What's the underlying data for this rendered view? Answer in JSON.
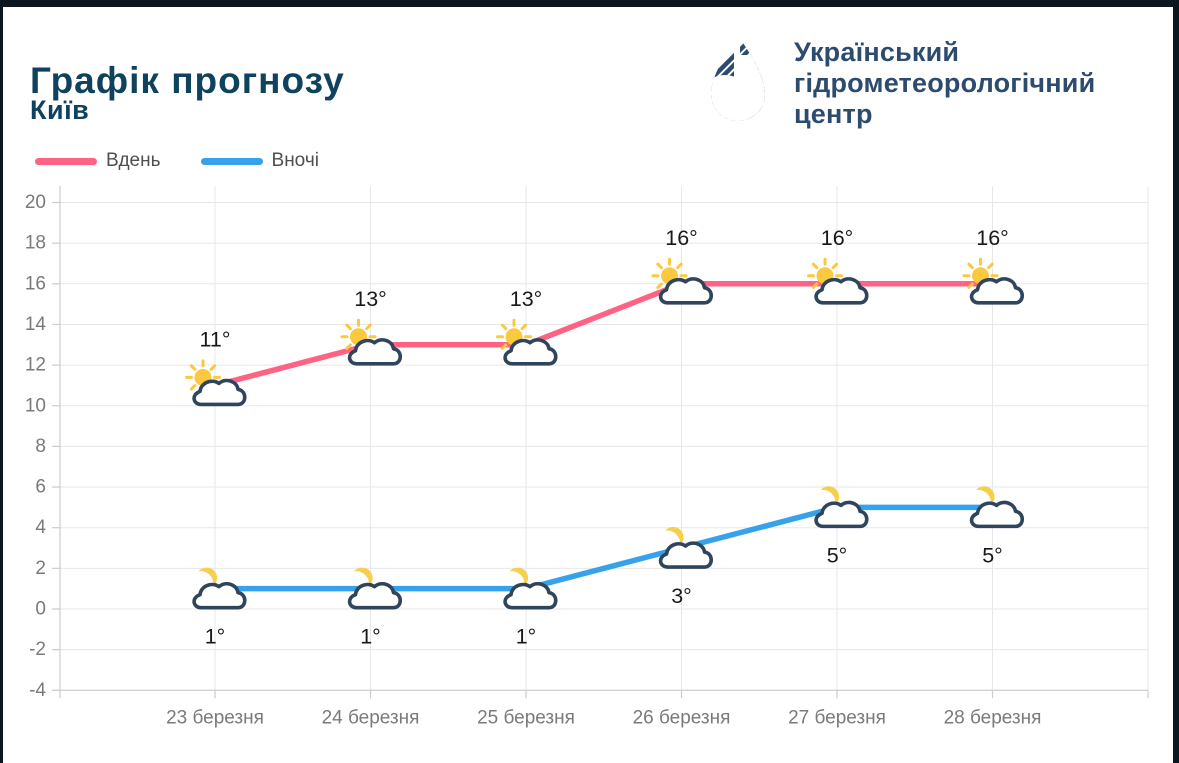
{
  "header": {
    "title": "Графік прогнозу",
    "subtitle": "Київ",
    "logo": {
      "lines": [
        "Український",
        "гідрометеорологічний",
        "центр"
      ]
    }
  },
  "legend": {
    "items": [
      {
        "label": "Вдень",
        "color": "#ff6384"
      },
      {
        "label": "Вночі",
        "color": "#36a2eb"
      }
    ]
  },
  "chart_data": {
    "type": "line",
    "title": "Графік прогнозу",
    "subtitle": "Київ",
    "categories": [
      "23 березня",
      "24 березня",
      "25 березня",
      "26 березня",
      "27 березня",
      "28 березня"
    ],
    "series": [
      {
        "name": "Вдень",
        "values": [
          11,
          13,
          13,
          16,
          16,
          16
        ],
        "color": "#ff6384",
        "icon": "sun-cloud",
        "label_position": "above"
      },
      {
        "name": "Вночі",
        "values": [
          1,
          1,
          1,
          3,
          5,
          5
        ],
        "color": "#36a2eb",
        "icon": "moon-cloud",
        "label_position": "below"
      }
    ],
    "unit": "°",
    "y_ticks": [
      20,
      18,
      16,
      14,
      12,
      10,
      8,
      6,
      4,
      2,
      0,
      -2,
      -4
    ],
    "ylim": [
      -4,
      21
    ],
    "grid": true,
    "legend_position": "top-left"
  },
  "colors": {
    "frame": "#0c161e",
    "title": "#0e425e",
    "logo_navy": "#2d4b6e",
    "logo_yellow": "#f2b724",
    "grid": "#e7e7e7",
    "axis_border": "#cccccc",
    "tick_label": "#7a7a7a",
    "point_label": "#181818",
    "legend_text": "#4f4f4f",
    "cloud_stroke": "#2f455c",
    "cloud_fill": "#ffffff",
    "sun": "#fbc93f",
    "moon": "#f7cf4e"
  }
}
